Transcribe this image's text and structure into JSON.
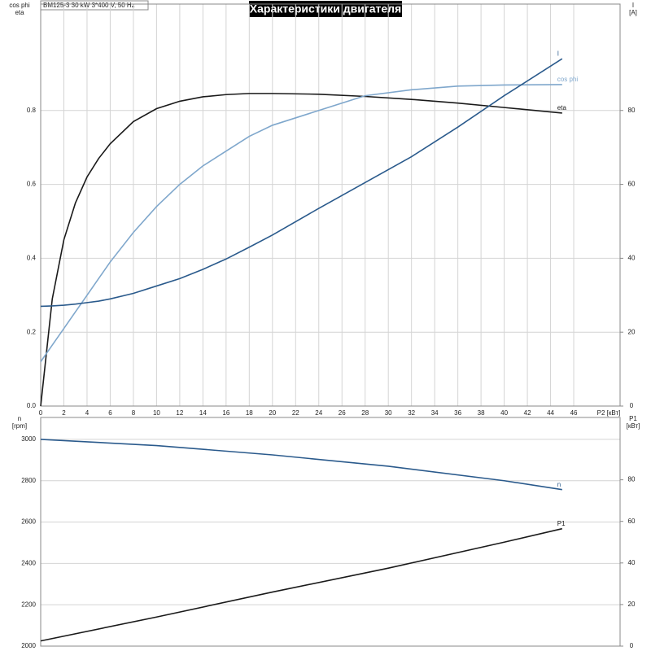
{
  "header": {
    "title": "Характеристики двигателя",
    "subtitle": "BM125-3   30 kW   3*400 V, 50 Hz"
  },
  "chart_data": [
    {
      "type": "line",
      "xlabel": "P2 [кВт]",
      "ylabel": [
        "cos phi",
        "eta"
      ],
      "y2label": [
        "I",
        "[A]"
      ],
      "x": [
        0,
        1,
        2,
        3,
        4,
        5,
        6,
        8,
        10,
        12,
        14,
        16,
        18,
        20,
        24,
        28,
        32,
        36,
        40,
        45
      ],
      "xlim": [
        0,
        50
      ],
      "xticks": [
        0,
        2,
        4,
        6,
        8,
        10,
        12,
        14,
        16,
        18,
        20,
        22,
        24,
        26,
        28,
        30,
        32,
        34,
        36,
        38,
        40,
        42,
        44,
        46
      ],
      "ylim": [
        0,
        1.088
      ],
      "yticks": [
        {
          "value": 0,
          "label": "0.0"
        },
        0.2,
        0.4,
        0.6,
        0.8
      ],
      "y2lim": [
        0,
        108.8
      ],
      "y2ticks": [
        0,
        20,
        40,
        60,
        80
      ],
      "grid": true,
      "series": [
        {
          "name": "eta",
          "color": "#1a1a1a",
          "values": [
            0,
            0.29,
            0.45,
            0.55,
            0.62,
            0.67,
            0.71,
            0.77,
            0.805,
            0.825,
            0.837,
            0.843,
            0.846,
            0.846,
            0.844,
            0.838,
            0.83,
            0.82,
            0.808,
            0.793
          ]
        },
        {
          "name": "cos phi",
          "color": "#7fa7cc",
          "values": [
            0.12,
            0.165,
            0.21,
            0.255,
            0.3,
            0.345,
            0.39,
            0.47,
            0.54,
            0.6,
            0.65,
            0.69,
            0.73,
            0.76,
            0.8,
            0.84,
            0.856,
            0.866,
            0.869,
            0.87
          ]
        },
        {
          "name": "I",
          "color": "#2a5a8c",
          "axis": "y2",
          "values": [
            27,
            27.1,
            27.3,
            27.6,
            28,
            28.4,
            29,
            30.5,
            32.5,
            34.5,
            37,
            39.8,
            43,
            46.3,
            53.5,
            60.5,
            67.5,
            75.5,
            84,
            94
          ]
        }
      ]
    },
    {
      "type": "line",
      "ylabel": [
        "n",
        "[rpm]"
      ],
      "y2label": [
        "P1",
        "[кВт]"
      ],
      "x": [
        0,
        10,
        20,
        30,
        40,
        45
      ],
      "xlim": [
        0,
        50
      ],
      "ylim": [
        2000,
        3106
      ],
      "yticks": [
        2000,
        2200,
        2400,
        2600,
        2800,
        3000
      ],
      "y2lim": [
        0,
        110
      ],
      "y2ticks": [
        0,
        20,
        40,
        60,
        80
      ],
      "grid": true,
      "series": [
        {
          "name": "n",
          "color": "#2a5a8c",
          "values": [
            3000,
            2970,
            2925,
            2870,
            2800,
            2757
          ]
        },
        {
          "name": "P1",
          "color": "#1a1a1a",
          "axis": "y2",
          "values": [
            2.5,
            14,
            26,
            37.5,
            50,
            56.5
          ]
        }
      ]
    }
  ]
}
